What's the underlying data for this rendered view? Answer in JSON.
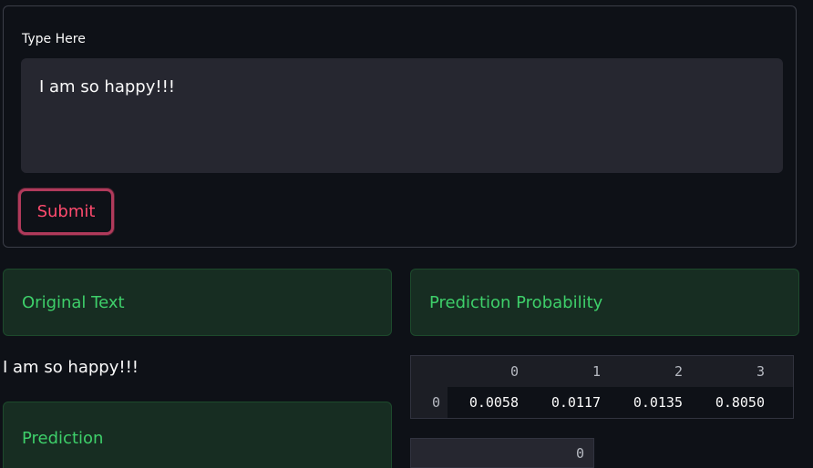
{
  "form": {
    "label": "Type Here",
    "text_value": "I am so happy!!!",
    "submit_label": "Submit"
  },
  "output": {
    "original_heading": "Original Text",
    "original_text": "I am so happy!!!",
    "prediction_heading": "Prediction",
    "probability_heading": "Prediction Probability"
  },
  "probability_table": {
    "columns": [
      "0",
      "1",
      "2",
      "3"
    ],
    "rows": [
      {
        "index": "0",
        "values": [
          "0.0058",
          "0.0117",
          "0.0135",
          "0.8050"
        ]
      }
    ]
  },
  "prediction_table": {
    "columns": [
      "0"
    ]
  },
  "colors": {
    "background": "#0e1117",
    "accent": "#ff4b6e",
    "success_text": "#3ecf6a",
    "success_bg": "#172d22"
  }
}
